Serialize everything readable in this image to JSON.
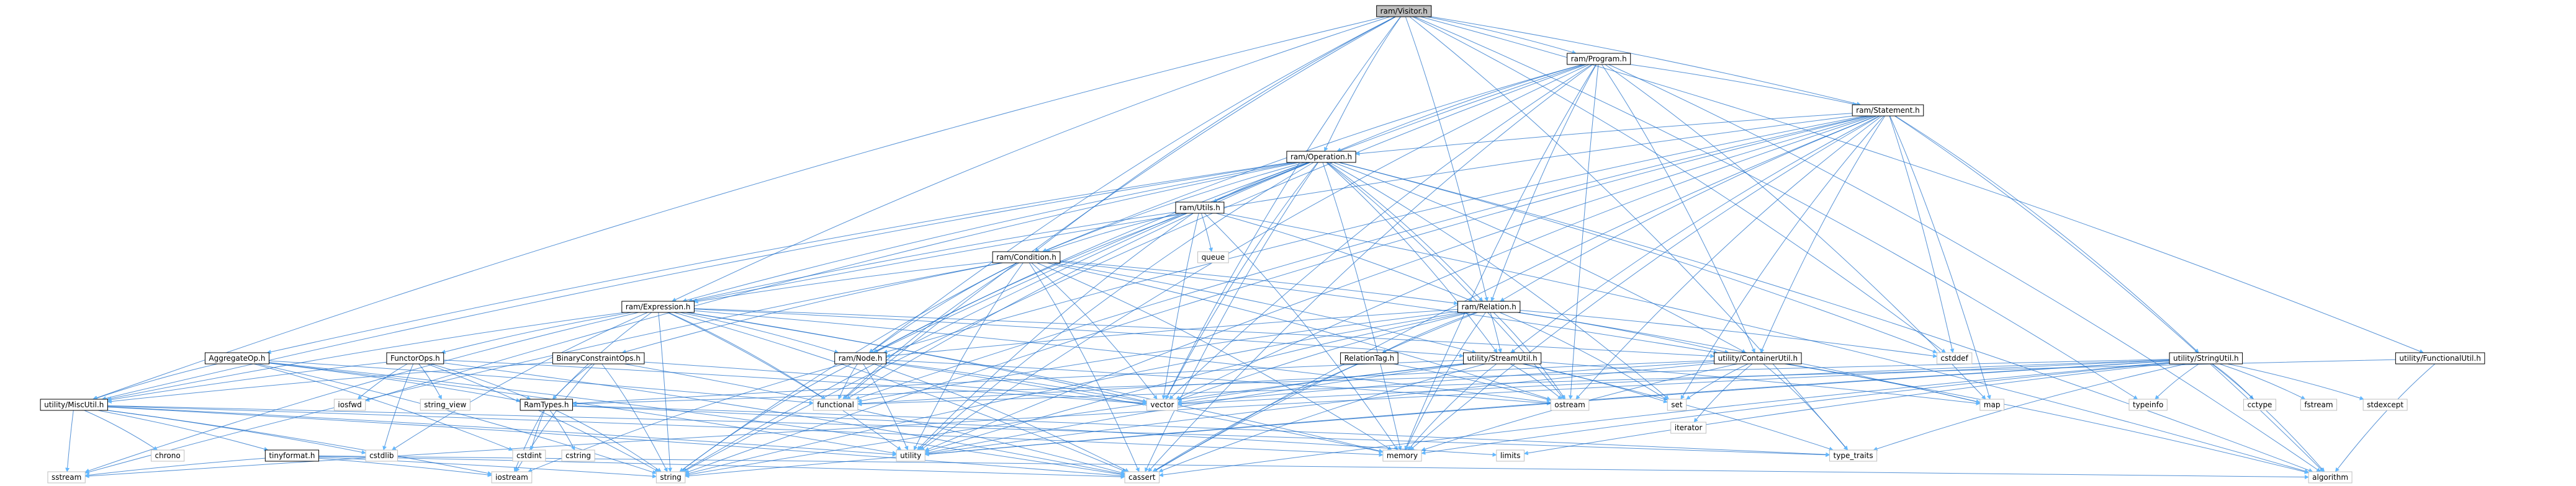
{
  "nodes": [
    {
      "id": "root",
      "label": "ram/Visitor.h",
      "kind": "root"
    },
    {
      "id": "program",
      "label": "ram/Program.h",
      "kind": "header"
    },
    {
      "id": "statement",
      "label": "ram/Statement.h",
      "kind": "header"
    },
    {
      "id": "operation",
      "label": "ram/Operation.h",
      "kind": "header"
    },
    {
      "id": "utils",
      "label": "ram/Utils.h",
      "kind": "header"
    },
    {
      "id": "condition",
      "label": "ram/Condition.h",
      "kind": "header"
    },
    {
      "id": "expression",
      "label": "ram/Expression.h",
      "kind": "header"
    },
    {
      "id": "relation",
      "label": "ram/Relation.h",
      "kind": "header"
    },
    {
      "id": "node",
      "label": "ram/Node.h",
      "kind": "header"
    },
    {
      "id": "containerutil",
      "label": "utility/ContainerUtil.h",
      "kind": "header"
    },
    {
      "id": "streamutil",
      "label": "utility/StreamUtil.h",
      "kind": "header"
    },
    {
      "id": "stringutil",
      "label": "utility/StringUtil.h",
      "kind": "header"
    },
    {
      "id": "functionalutil",
      "label": "utility/FunctionalUtil.h",
      "kind": "header"
    },
    {
      "id": "miscutil",
      "label": "utility/MiscUtil.h",
      "kind": "header"
    },
    {
      "id": "aggregateop",
      "label": "AggregateOp.h",
      "kind": "header"
    },
    {
      "id": "functorops",
      "label": "FunctorOps.h",
      "kind": "header"
    },
    {
      "id": "binaryconstraintops",
      "label": "BinaryConstraintOps.h",
      "kind": "header"
    },
    {
      "id": "ramtypes",
      "label": "RamTypes.h",
      "kind": "header"
    },
    {
      "id": "relationtag",
      "label": "RelationTag.h",
      "kind": "header"
    },
    {
      "id": "tinyformat",
      "label": "tinyformat.h",
      "kind": "header"
    },
    {
      "id": "queue",
      "label": "queue",
      "kind": "system"
    },
    {
      "id": "cstddef",
      "label": "cstddef",
      "kind": "system"
    },
    {
      "id": "vector",
      "label": "vector",
      "kind": "system"
    },
    {
      "id": "ostream",
      "label": "ostream",
      "kind": "system"
    },
    {
      "id": "set",
      "label": "set",
      "kind": "system"
    },
    {
      "id": "map",
      "label": "map",
      "kind": "system"
    },
    {
      "id": "iterator",
      "label": "iterator",
      "kind": "system"
    },
    {
      "id": "functional",
      "label": "functional",
      "kind": "system"
    },
    {
      "id": "typeinfo",
      "label": "typeinfo",
      "kind": "system"
    },
    {
      "id": "cctype",
      "label": "cctype",
      "kind": "system"
    },
    {
      "id": "fstream",
      "label": "fstream",
      "kind": "system"
    },
    {
      "id": "stdexcept",
      "label": "stdexcept",
      "kind": "system"
    },
    {
      "id": "iosfwd",
      "label": "iosfwd",
      "kind": "system"
    },
    {
      "id": "string_view",
      "label": "string_view",
      "kind": "system"
    },
    {
      "id": "chrono",
      "label": "chrono",
      "kind": "system"
    },
    {
      "id": "cstdlib",
      "label": "cstdlib",
      "kind": "system"
    },
    {
      "id": "cstdint",
      "label": "cstdint",
      "kind": "system"
    },
    {
      "id": "cstring",
      "label": "cstring",
      "kind": "system"
    },
    {
      "id": "utility",
      "label": "utility",
      "kind": "system"
    },
    {
      "id": "memory",
      "label": "memory",
      "kind": "system"
    },
    {
      "id": "limits",
      "label": "limits",
      "kind": "system"
    },
    {
      "id": "type_traits",
      "label": "type_traits",
      "kind": "system"
    },
    {
      "id": "sstream",
      "label": "sstream",
      "kind": "system"
    },
    {
      "id": "iostream",
      "label": "iostream",
      "kind": "system"
    },
    {
      "id": "string",
      "label": "string",
      "kind": "system"
    },
    {
      "id": "cassert",
      "label": "cassert",
      "kind": "system"
    },
    {
      "id": "algorithm",
      "label": "algorithm",
      "kind": "system"
    }
  ],
  "edges": [
    [
      "root",
      "program"
    ],
    [
      "root",
      "statement"
    ],
    [
      "root",
      "operation"
    ],
    [
      "root",
      "condition"
    ],
    [
      "root",
      "expression"
    ],
    [
      "root",
      "relation"
    ],
    [
      "root",
      "node"
    ],
    [
      "root",
      "miscutil"
    ],
    [
      "root",
      "functionalutil"
    ],
    [
      "root",
      "cstddef"
    ],
    [
      "root",
      "functional"
    ],
    [
      "root",
      "typeinfo"
    ],
    [
      "root",
      "vector"
    ],
    [
      "root",
      "type_traits"
    ],
    [
      "program",
      "statement"
    ],
    [
      "program",
      "relation"
    ],
    [
      "program",
      "node"
    ],
    [
      "program",
      "containerutil"
    ],
    [
      "program",
      "operation"
    ],
    [
      "program",
      "condition"
    ],
    [
      "program",
      "ostream"
    ],
    [
      "program",
      "map"
    ],
    [
      "program",
      "string"
    ],
    [
      "program",
      "vector"
    ],
    [
      "program",
      "utility"
    ],
    [
      "program",
      "memory"
    ],
    [
      "program",
      "cassert"
    ],
    [
      "program",
      "algorithm"
    ],
    [
      "statement",
      "operation"
    ],
    [
      "statement",
      "relation"
    ],
    [
      "statement",
      "node"
    ],
    [
      "statement",
      "containerutil"
    ],
    [
      "statement",
      "streamutil"
    ],
    [
      "statement",
      "stringutil"
    ],
    [
      "statement",
      "cstddef"
    ],
    [
      "statement",
      "vector"
    ],
    [
      "statement",
      "ostream"
    ],
    [
      "statement",
      "string"
    ],
    [
      "statement",
      "utility"
    ],
    [
      "statement",
      "memory"
    ],
    [
      "statement",
      "algorithm"
    ],
    [
      "statement",
      "functional"
    ],
    [
      "statement",
      "map"
    ],
    [
      "statement",
      "cassert"
    ],
    [
      "statement",
      "set"
    ],
    [
      "statement",
      "expression"
    ],
    [
      "operation",
      "utils"
    ],
    [
      "operation",
      "condition"
    ],
    [
      "operation",
      "expression"
    ],
    [
      "operation",
      "relation"
    ],
    [
      "operation",
      "node"
    ],
    [
      "operation",
      "containerutil"
    ],
    [
      "operation",
      "streamutil"
    ],
    [
      "operation",
      "aggregateop"
    ],
    [
      "operation",
      "miscutil"
    ],
    [
      "operation",
      "cstddef"
    ],
    [
      "operation",
      "vector"
    ],
    [
      "operation",
      "ostream"
    ],
    [
      "operation",
      "string"
    ],
    [
      "operation",
      "utility"
    ],
    [
      "operation",
      "memory"
    ],
    [
      "operation",
      "cassert"
    ],
    [
      "operation",
      "iosfwd"
    ],
    [
      "operation",
      "functional"
    ],
    [
      "operation",
      "set"
    ],
    [
      "operation",
      "algorithm"
    ],
    [
      "utils",
      "condition"
    ],
    [
      "utils",
      "expression"
    ],
    [
      "utils",
      "node"
    ],
    [
      "utils",
      "relation"
    ],
    [
      "utils",
      "queue"
    ],
    [
      "utils",
      "vector"
    ],
    [
      "utils",
      "memory"
    ],
    [
      "utils",
      "utility"
    ],
    [
      "utils",
      "algorithm"
    ],
    [
      "condition",
      "expression"
    ],
    [
      "condition",
      "relation"
    ],
    [
      "condition",
      "node"
    ],
    [
      "condition",
      "binaryconstraintops"
    ],
    [
      "condition",
      "containerutil"
    ],
    [
      "condition",
      "streamutil"
    ],
    [
      "condition",
      "functional"
    ],
    [
      "condition",
      "vector"
    ],
    [
      "condition",
      "ostream"
    ],
    [
      "condition",
      "string"
    ],
    [
      "condition",
      "utility"
    ],
    [
      "condition",
      "memory"
    ],
    [
      "condition",
      "cassert"
    ],
    [
      "condition",
      "sstream"
    ],
    [
      "expression",
      "node"
    ],
    [
      "expression",
      "functorops"
    ],
    [
      "expression",
      "ramtypes"
    ],
    [
      "expression",
      "containerutil"
    ],
    [
      "expression",
      "streamutil"
    ],
    [
      "expression",
      "miscutil"
    ],
    [
      "expression",
      "vector"
    ],
    [
      "expression",
      "ostream"
    ],
    [
      "expression",
      "string"
    ],
    [
      "expression",
      "utility"
    ],
    [
      "expression",
      "memory"
    ],
    [
      "expression",
      "cassert"
    ],
    [
      "expression",
      "cstdlib"
    ],
    [
      "expression",
      "functional"
    ],
    [
      "expression",
      "sstream"
    ],
    [
      "relation",
      "node"
    ],
    [
      "relation",
      "relationtag"
    ],
    [
      "relation",
      "containerutil"
    ],
    [
      "relation",
      "streamutil"
    ],
    [
      "relation",
      "cstddef"
    ],
    [
      "relation",
      "vector"
    ],
    [
      "relation",
      "ostream"
    ],
    [
      "relation",
      "string"
    ],
    [
      "relation",
      "utility"
    ],
    [
      "relation",
      "memory"
    ],
    [
      "relation",
      "cassert"
    ],
    [
      "relation",
      "map"
    ],
    [
      "relation",
      "set"
    ],
    [
      "relation",
      "functional"
    ],
    [
      "node",
      "vector"
    ],
    [
      "node",
      "ostream"
    ],
    [
      "node",
      "functional"
    ],
    [
      "node",
      "string"
    ],
    [
      "node",
      "utility"
    ],
    [
      "node",
      "memory"
    ],
    [
      "node",
      "cassert"
    ],
    [
      "node",
      "iostream"
    ],
    [
      "containerutil",
      "map"
    ],
    [
      "containerutil",
      "set"
    ],
    [
      "containerutil",
      "iterator"
    ],
    [
      "containerutil",
      "utility"
    ],
    [
      "containerutil",
      "vector"
    ],
    [
      "containerutil",
      "memory"
    ],
    [
      "containerutil",
      "type_traits"
    ],
    [
      "containerutil",
      "functional"
    ],
    [
      "containerutil",
      "algorithm"
    ],
    [
      "streamutil",
      "ostream"
    ],
    [
      "streamutil",
      "vector"
    ],
    [
      "streamutil",
      "map"
    ],
    [
      "streamutil",
      "set"
    ],
    [
      "streamutil",
      "memory"
    ],
    [
      "streamutil",
      "utility"
    ],
    [
      "streamutil",
      "string"
    ],
    [
      "streamutil",
      "type_traits"
    ],
    [
      "streamutil",
      "cassert"
    ],
    [
      "streamutil",
      "ramtypes"
    ],
    [
      "stringutil",
      "ramtypes"
    ],
    [
      "stringutil",
      "typeinfo"
    ],
    [
      "stringutil",
      "cctype"
    ],
    [
      "stringutil",
      "fstream"
    ],
    [
      "stringutil",
      "stdexcept"
    ],
    [
      "stringutil",
      "limits"
    ],
    [
      "stringutil",
      "sstream"
    ],
    [
      "stringutil",
      "string"
    ],
    [
      "stringutil",
      "type_traits"
    ],
    [
      "stringutil",
      "algorithm"
    ],
    [
      "stringutil",
      "utility"
    ],
    [
      "stringutil",
      "vector"
    ],
    [
      "stringutil",
      "memory"
    ],
    [
      "stringutil",
      "cassert"
    ],
    [
      "functionalutil",
      "functional"
    ],
    [
      "functionalutil",
      "algorithm"
    ],
    [
      "miscutil",
      "chrono"
    ],
    [
      "miscutil",
      "cstdlib"
    ],
    [
      "miscutil",
      "tinyformat"
    ],
    [
      "miscutil",
      "utility"
    ],
    [
      "miscutil",
      "memory"
    ],
    [
      "miscutil",
      "type_traits"
    ],
    [
      "miscutil",
      "iostream"
    ],
    [
      "miscutil",
      "sstream"
    ],
    [
      "miscutil",
      "cassert"
    ],
    [
      "aggregateop",
      "miscutil"
    ],
    [
      "aggregateop",
      "ramtypes"
    ],
    [
      "aggregateop",
      "functional"
    ],
    [
      "aggregateop",
      "cstdint"
    ],
    [
      "aggregateop",
      "utility"
    ],
    [
      "aggregateop",
      "string"
    ],
    [
      "aggregateop",
      "cassert"
    ],
    [
      "functorops",
      "miscutil"
    ],
    [
      "functorops",
      "ramtypes"
    ],
    [
      "functorops",
      "iosfwd"
    ],
    [
      "functorops",
      "string_view"
    ],
    [
      "functorops",
      "cstdlib"
    ],
    [
      "functorops",
      "cassert"
    ],
    [
      "functorops",
      "vector"
    ],
    [
      "functorops",
      "string"
    ],
    [
      "binaryconstraintops",
      "miscutil"
    ],
    [
      "binaryconstraintops",
      "ramtypes"
    ],
    [
      "binaryconstraintops",
      "iostream"
    ],
    [
      "binaryconstraintops",
      "string"
    ],
    [
      "binaryconstraintops",
      "vector"
    ],
    [
      "binaryconstraintops",
      "cassert"
    ],
    [
      "ramtypes",
      "cstdint"
    ],
    [
      "ramtypes",
      "cstring"
    ],
    [
      "ramtypes",
      "iostream"
    ],
    [
      "ramtypes",
      "limits"
    ],
    [
      "ramtypes",
      "type_traits"
    ],
    [
      "ramtypes",
      "string"
    ],
    [
      "relationtag",
      "ostream"
    ],
    [
      "relationtag",
      "cassert"
    ],
    [
      "tinyformat",
      "iostream"
    ],
    [
      "tinyformat",
      "sstream"
    ],
    [
      "tinyformat",
      "cassert"
    ],
    [
      "tinyformat",
      "string"
    ],
    [
      "tinyformat",
      "algorithm"
    ]
  ]
}
